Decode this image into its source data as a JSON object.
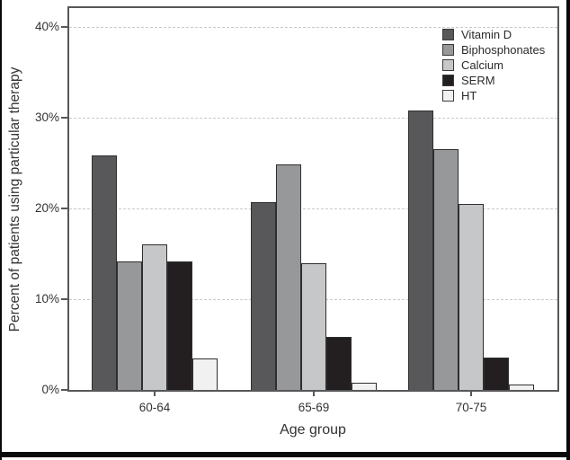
{
  "chart_data": {
    "type": "bar",
    "title": "",
    "xlabel": "Age group",
    "ylabel": "Percent of patients using particular therapy",
    "categories": [
      "60-64",
      "65-69",
      "70-75"
    ],
    "series": [
      {
        "name": "Vitamin D",
        "color": "#58585a",
        "values": [
          25.8,
          20.7,
          30.8
        ]
      },
      {
        "name": "Biphosphonates",
        "color": "#97989a",
        "values": [
          14.2,
          24.9,
          26.5
        ]
      },
      {
        "name": "Calcium",
        "color": "#c6c7c9",
        "values": [
          16.0,
          14.0,
          20.5
        ]
      },
      {
        "name": "SERM",
        "color": "#231f20",
        "values": [
          14.2,
          5.8,
          3.6
        ]
      },
      {
        "name": "HT",
        "color": "#f1f1f2",
        "values": [
          3.5,
          0.8,
          0.6
        ]
      }
    ],
    "y_ticks": [
      0,
      10,
      20,
      30,
      40
    ],
    "y_tick_labels": [
      "0%",
      "10%",
      "20%",
      "30%",
      "40%"
    ],
    "ylim": [
      0,
      42
    ],
    "grid": "horizontal-dashed-every-10pct",
    "legend_position": "top-right-inside"
  },
  "style": {
    "bar_outline": "#2e2e2f",
    "plot_border": "#57575a",
    "gridline": "#c9c9c9",
    "text": "#333334",
    "frame": "#0a0a0a",
    "background": "#ffffff"
  }
}
